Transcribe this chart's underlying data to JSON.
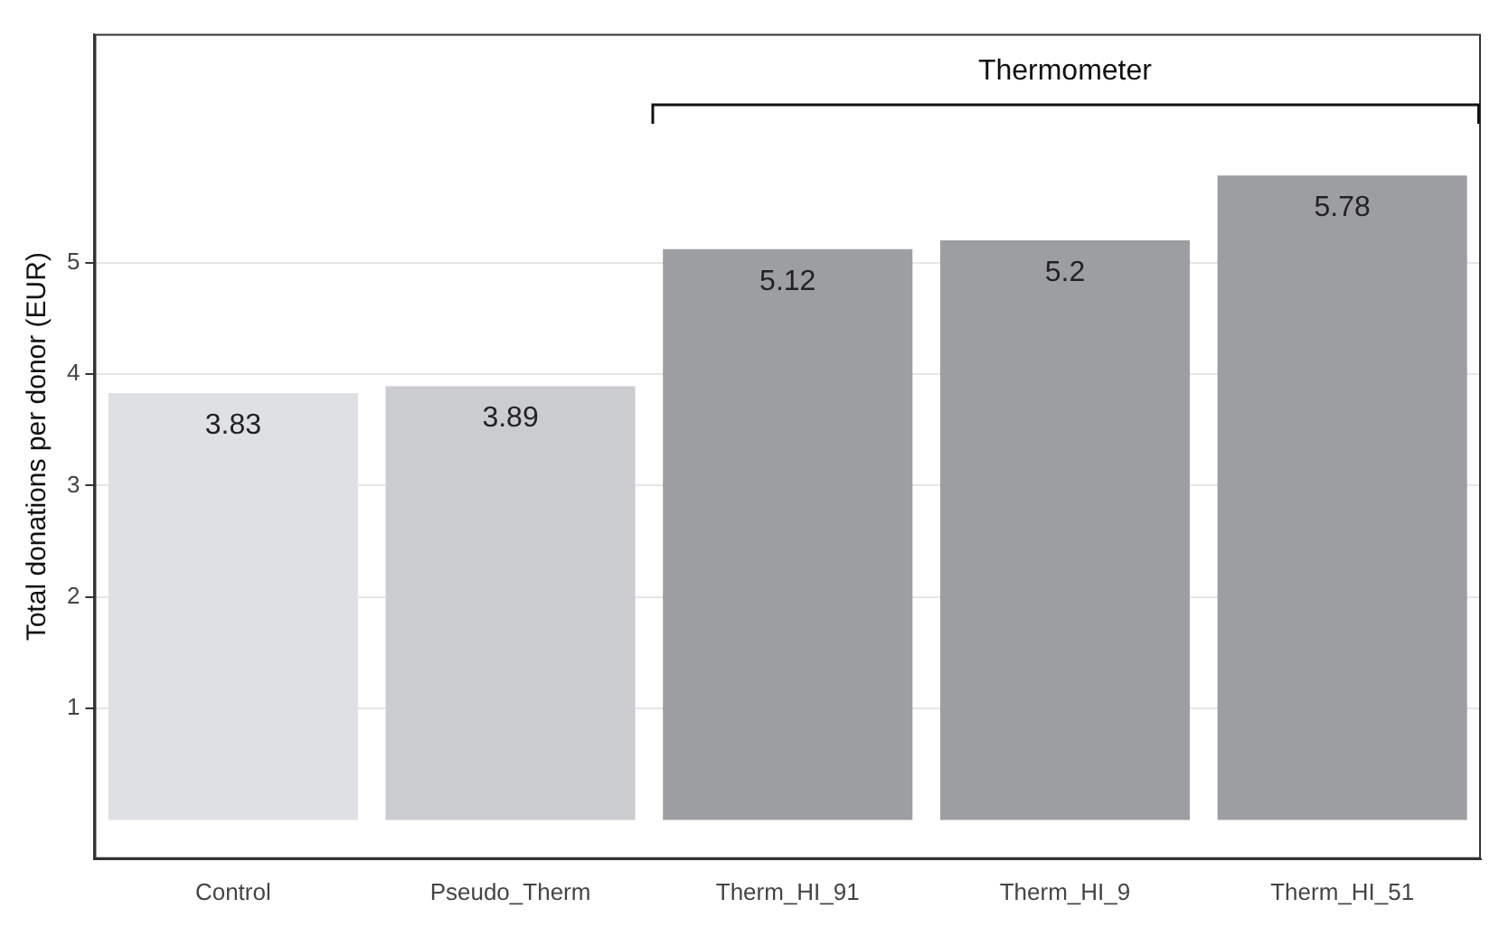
{
  "chart_data": {
    "type": "bar",
    "ylabel": "Total donations per donor (EUR)",
    "categories": [
      "Control",
      "Pseudo_Therm",
      "Therm_HI_91",
      "Therm_HI_9",
      "Therm_HI_51"
    ],
    "values": [
      3.83,
      3.89,
      5.12,
      5.2,
      5.78
    ],
    "colors": [
      "#dfe0e4",
      "#cbccd0",
      "#9d9ea2",
      "#9d9ea2",
      "#9d9ea2"
    ],
    "ylim": [
      -0.35,
      7.05
    ],
    "yticks": [
      1,
      2,
      3,
      4,
      5
    ],
    "grid": "y",
    "data_labels": true,
    "annotations": [
      "Thermometer"
    ]
  }
}
